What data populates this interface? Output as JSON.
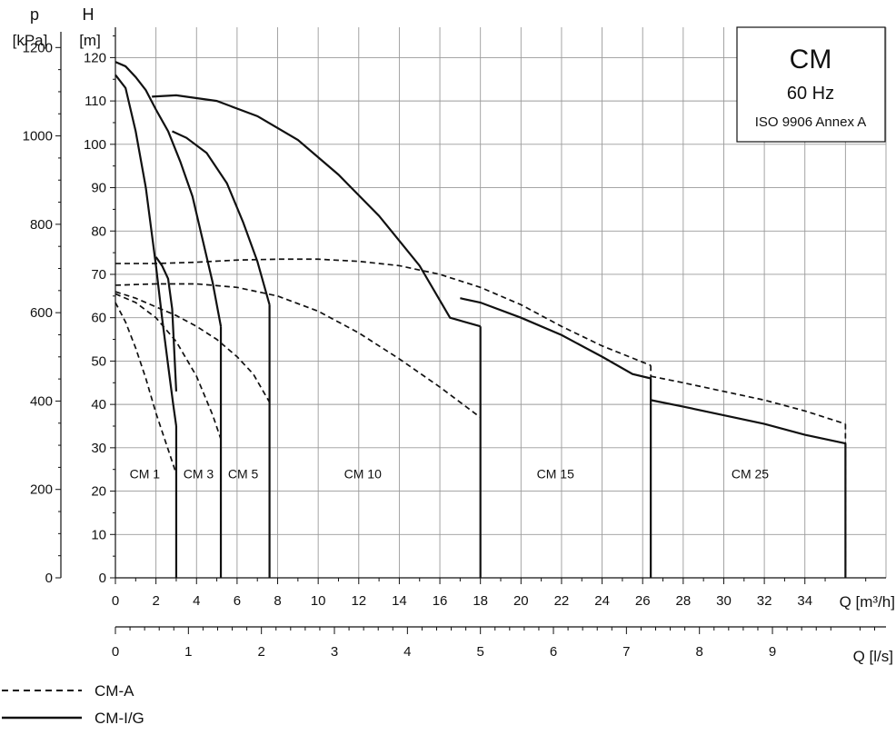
{
  "chart_data": {
    "type": "line",
    "title": "CM",
    "subtitle": "60 Hz",
    "standard": "ISO 9906 Annex A",
    "x_primary": {
      "unit_label": "Q [m³/h]",
      "min": 0,
      "max": 38,
      "ticks": [
        0,
        2,
        4,
        6,
        8,
        10,
        12,
        14,
        16,
        18,
        20,
        22,
        24,
        26,
        28,
        30,
        32,
        34
      ]
    },
    "x_secondary": {
      "unit_label": "Q [l/s]",
      "ticks": [
        0,
        1,
        2,
        3,
        4,
        5,
        6,
        7,
        8,
        9
      ]
    },
    "y_primary": {
      "top_label": "H",
      "unit_label": "[m]",
      "min": 0,
      "max": 127,
      "ticks": [
        0,
        10,
        20,
        30,
        40,
        50,
        60,
        70,
        80,
        90,
        100,
        110,
        120
      ]
    },
    "y_secondary": {
      "top_label": "p",
      "unit_label": "[kPa]",
      "ticks": [
        0,
        200,
        400,
        600,
        800,
        1000,
        1200
      ]
    },
    "grid": true,
    "legend": [
      {
        "label": "CM-A",
        "style": "dashed"
      },
      {
        "label": "CM-I/G",
        "style": "solid"
      }
    ],
    "zone_labels": [
      {
        "text": "CM 1",
        "q": 1.45,
        "h": 24
      },
      {
        "text": "CM 3",
        "q": 4.1,
        "h": 24
      },
      {
        "text": "CM 5",
        "q": 6.3,
        "h": 24
      },
      {
        "text": "CM 10",
        "q": 12.2,
        "h": 24
      },
      {
        "text": "CM 15",
        "q": 21.7,
        "h": 24
      },
      {
        "text": "CM 25",
        "q": 31.3,
        "h": 24
      }
    ],
    "series": [
      {
        "name": "CM-I/G",
        "group": "CM 1",
        "style": "solid",
        "x": [
          0,
          0.5,
          1,
          1.5,
          2,
          2.3,
          2.6,
          2.85,
          3
        ],
        "y": [
          116,
          113,
          103,
          90,
          72,
          60,
          49,
          40,
          35
        ],
        "drop_to_zero_at": 3
      },
      {
        "name": "CM-I/G",
        "group": "CM 1 (low)",
        "style": "solid",
        "x": [
          2,
          2.3,
          2.6,
          2.8,
          3
        ],
        "y": [
          74,
          72,
          69,
          62,
          43
        ]
      },
      {
        "name": "CM-I/G",
        "group": "CM 3",
        "style": "solid",
        "x": [
          0,
          0.5,
          1,
          1.5,
          2,
          2.6,
          3.2,
          3.8,
          4.3,
          4.8,
          5.2
        ],
        "y": [
          119,
          118,
          115.5,
          112.5,
          108,
          103,
          96,
          88,
          78,
          68,
          58
        ],
        "drop_to_zero_at": 5.2
      },
      {
        "name": "CM-I/G",
        "group": "CM 5",
        "style": "solid",
        "x": [
          2.8,
          3.5,
          4.5,
          5.5,
          6.3,
          7,
          7.6
        ],
        "y": [
          103,
          101.5,
          98,
          91,
          82,
          73,
          63
        ],
        "drop_to_zero_at": 7.6
      },
      {
        "name": "CM-I/G",
        "group": "CM 10",
        "style": "solid",
        "x": [
          1.8,
          3,
          5,
          7,
          9,
          11,
          13,
          15,
          16.5,
          18
        ],
        "y": [
          111,
          111.3,
          110,
          106.5,
          101,
          93,
          83.5,
          72,
          60,
          58
        ],
        "drop_to_zero_at": 18
      },
      {
        "name": "CM-I/G",
        "group": "CM 15",
        "style": "solid",
        "x": [
          17,
          18,
          20,
          22,
          24,
          25.5,
          26.4
        ],
        "y": [
          64.5,
          63.5,
          60,
          56,
          51,
          47,
          46
        ],
        "drop_to_zero_at": 26.4
      },
      {
        "name": "CM-I/G",
        "group": "CM 25",
        "style": "solid",
        "x": [
          26.4,
          28,
          30,
          32,
          34,
          36
        ],
        "y": [
          41,
          39.5,
          37.5,
          35.5,
          33,
          31
        ],
        "drop_to_zero_at": 36
      },
      {
        "name": "CM-A",
        "group": "CM 1",
        "style": "dashed",
        "x": [
          0,
          0.5,
          1,
          1.5,
          2,
          2.5,
          3
        ],
        "y": [
          63.5,
          59,
          53,
          46,
          38,
          31,
          24
        ]
      },
      {
        "name": "CM-A",
        "group": "CM 3",
        "style": "dashed",
        "x": [
          0,
          1,
          2,
          3,
          4,
          4.8,
          5.2
        ],
        "y": [
          65.5,
          63.5,
          60,
          54.5,
          46.5,
          37.5,
          32
        ],
        "drop_to_zero_at": 5.2
      },
      {
        "name": "CM-A",
        "group": "CM 5",
        "style": "dashed",
        "x": [
          0,
          1,
          2,
          3,
          4,
          5,
          6,
          6.8,
          7.6
        ],
        "y": [
          66,
          64.5,
          62.5,
          60.5,
          58,
          55,
          51,
          47,
          40.5
        ]
      },
      {
        "name": "CM-A",
        "group": "CM 10",
        "style": "dashed",
        "x": [
          0,
          2,
          4,
          6,
          8,
          10,
          12,
          14,
          16,
          18
        ],
        "y": [
          67.5,
          67.8,
          67.8,
          67,
          65,
          61.5,
          56.5,
          50.5,
          44,
          37
        ]
      },
      {
        "name": "CM-A",
        "group": "CM 15",
        "style": "dashed",
        "x": [
          0,
          2,
          4,
          6,
          8,
          10,
          12,
          14,
          16,
          18,
          20,
          22,
          24,
          26.4
        ],
        "y": [
          72.5,
          72.5,
          72.8,
          73.3,
          73.5,
          73.5,
          73,
          72,
          70,
          67,
          63,
          58,
          53.5,
          49
        ],
        "drop_to_zero_at": 26.4
      },
      {
        "name": "CM-A",
        "group": "CM 25",
        "style": "dashed",
        "x": [
          26.4,
          28,
          30,
          32,
          34,
          36
        ],
        "y": [
          46.5,
          45,
          43,
          41,
          38.5,
          35.5
        ],
        "drop_to_zero_at": 36
      }
    ]
  }
}
